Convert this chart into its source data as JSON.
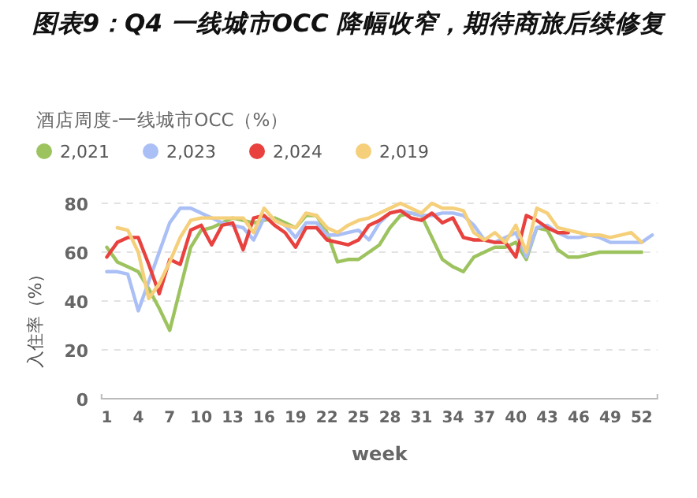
{
  "chart_data": {
    "type": "line",
    "title": "图表9：Q4 一线城市OCC 降幅收窄，期待商旅后续修复",
    "subtitle": "酒店周度-一线城市OCC（%）",
    "xlabel": "week",
    "ylabel": "入住率（%）",
    "x": [
      1,
      2,
      3,
      4,
      5,
      6,
      7,
      8,
      9,
      10,
      11,
      12,
      13,
      14,
      15,
      16,
      17,
      18,
      19,
      20,
      21,
      22,
      23,
      24,
      25,
      26,
      27,
      28,
      29,
      30,
      31,
      32,
      33,
      34,
      35,
      36,
      37,
      38,
      39,
      40,
      41,
      42,
      43,
      44,
      45,
      46,
      47,
      48,
      49,
      50,
      51,
      52,
      53
    ],
    "series": [
      {
        "name": "2,021",
        "color": "#9dc35f",
        "values": [
          62,
          56,
          54,
          52,
          45,
          37,
          28,
          45,
          62,
          69,
          70,
          72,
          74,
          73,
          72,
          73,
          74,
          72,
          70,
          75,
          75,
          68,
          56,
          57,
          57,
          60,
          63,
          70,
          75,
          76,
          75,
          66,
          57,
          54,
          52,
          58,
          60,
          62,
          62,
          64,
          57,
          70,
          69,
          61,
          58,
          58,
          59,
          60,
          60,
          60,
          60,
          60,
          null
        ]
      },
      {
        "name": "2,023",
        "color": "#aabff5",
        "values": [
          52,
          52,
          51,
          36,
          48,
          60,
          72,
          78,
          78,
          76,
          74,
          72,
          71,
          70,
          65,
          74,
          73,
          71,
          66,
          72,
          72,
          67,
          67,
          68,
          69,
          65,
          72,
          76,
          77,
          76,
          75,
          75,
          76,
          76,
          75,
          71,
          65,
          64,
          66,
          68,
          58,
          70,
          71,
          68,
          66,
          66,
          67,
          66,
          64,
          64,
          64,
          64,
          67
        ]
      },
      {
        "name": "2,024",
        "color": "#e8413e",
        "values": [
          58,
          64,
          66,
          66,
          55,
          43,
          57,
          55,
          69,
          71,
          63,
          71,
          72,
          61,
          74,
          75,
          71,
          68,
          62,
          70,
          70,
          65,
          64,
          63,
          65,
          71,
          73,
          76,
          77,
          74,
          73,
          76,
          72,
          74,
          66,
          65,
          65,
          64,
          64,
          58,
          75,
          73,
          70,
          68,
          68,
          null,
          null,
          null,
          null,
          null,
          null,
          null,
          null
        ]
      },
      {
        "name": "2,019",
        "color": "#f5cf7a",
        "values": [
          null,
          70,
          69,
          60,
          41,
          47,
          56,
          66,
          73,
          74,
          74,
          74,
          74,
          74,
          68,
          78,
          73,
          71,
          70,
          76,
          75,
          70,
          68,
          71,
          73,
          74,
          76,
          78,
          80,
          78,
          76,
          80,
          78,
          78,
          77,
          68,
          65,
          68,
          64,
          71,
          60,
          78,
          76,
          70,
          69,
          68,
          67,
          67,
          66,
          67,
          68,
          64,
          null
        ]
      }
    ],
    "xlim": [
      0.5,
      53.5
    ],
    "xticks": [
      1,
      4,
      7,
      10,
      13,
      16,
      19,
      22,
      25,
      28,
      31,
      34,
      37,
      40,
      43,
      46,
      49,
      52
    ],
    "ylim": [
      0,
      80
    ],
    "yticks": [
      0,
      20,
      40,
      60,
      80
    ],
    "grid": "y",
    "legend": "top",
    "marker": "none",
    "line_style": "solid"
  }
}
